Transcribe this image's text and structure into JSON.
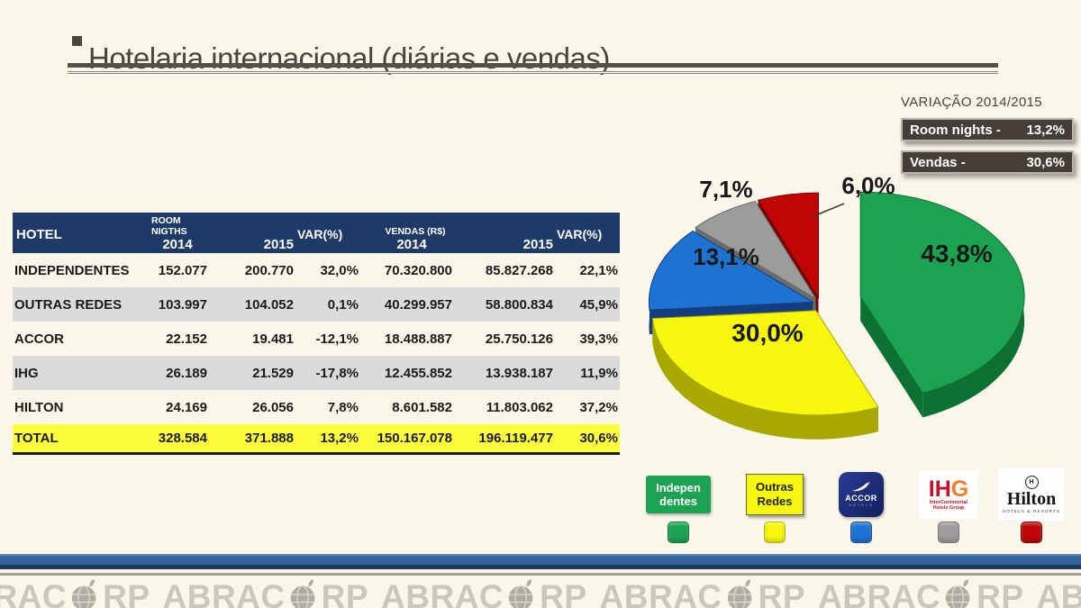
{
  "slide": {
    "title": "Hotelaria internacional (diárias e vendas)",
    "background": "#FAF7EA",
    "title_color": "#4A443C"
  },
  "variation": {
    "title": "VARIAÇÃO 2014/2015",
    "box_color": "#453E37",
    "rows": [
      {
        "label": "Room nights -",
        "value": "13,2%"
      },
      {
        "label": "Vendas -",
        "value": "30,6%"
      }
    ]
  },
  "table": {
    "header": {
      "hotel": "HOTEL",
      "rn_group": "ROOM NIGTHS",
      "rn_2014": "2014",
      "rn_2015": "2015",
      "rn_var": "VAR(%)",
      "v_group": "VENDAS (R$)",
      "v_2014": "2014",
      "v_2015": "2015",
      "v_var": "VAR(%)"
    },
    "header_color": "#1E3A68",
    "stripe_color": "#DBDBDB",
    "total_color": "#FCFC3A",
    "rows": [
      {
        "name": "INDEPENDENTES",
        "rn14": "152.077",
        "rn15": "200.770",
        "rnv": "32,0%",
        "v14": "70.320.800",
        "v15": "85.827.268",
        "vv": "22,1%"
      },
      {
        "name": "OUTRAS REDES",
        "rn14": "103.997",
        "rn15": "104.052",
        "rnv": "0,1%",
        "v14": "40.299.957",
        "v15": "58.800.834",
        "vv": "45,9%"
      },
      {
        "name": "ACCOR",
        "rn14": "22.152",
        "rn15": "19.481",
        "rnv": "-12,1%",
        "v14": "18.488.887",
        "v15": "25.750.126",
        "vv": "39,3%"
      },
      {
        "name": "IHG",
        "rn14": "26.189",
        "rn15": "21.529",
        "rnv": "-17,8%",
        "v14": "12.455.852",
        "v15": "13.938.187",
        "vv": "11,9%"
      },
      {
        "name": "HILTON",
        "rn14": "24.169",
        "rn15": "26.056",
        "rnv": "7,8%",
        "v14": "8.601.582",
        "v15": "11.803.062",
        "vv": "37,2%"
      }
    ],
    "total": {
      "name": "TOTAL",
      "rn14": "328.584",
      "rn15": "371.888",
      "rnv": "13,2%",
      "v14": "150.167.078",
      "v15": "196.119.477",
      "vv": "30,6%"
    }
  },
  "chart_data": {
    "type": "pie",
    "style": "3d-exploded",
    "labels": [
      "Independentes",
      "Outras Redes",
      "Accor",
      "IHG",
      "Hilton"
    ],
    "values": [
      43.8,
      30.0,
      13.1,
      7.1,
      6.0
    ],
    "display_labels": [
      "43,8%",
      "30,0%",
      "13,1%",
      "7,1%",
      "6,0%"
    ],
    "colors": [
      "#1CA351",
      "#F6F60E",
      "#1E72D2",
      "#9C9C9C",
      "#C00505"
    ],
    "side_colors": [
      "#0E7134",
      "#A8A800",
      "#143E80",
      "#6B6B6B",
      "#790303"
    ],
    "exploded_index": 0,
    "start_angle_deg": 0,
    "direction": "clockwise",
    "legend_position": "bottom"
  },
  "legend": {
    "items": [
      {
        "id": "independentes",
        "line1": "Indepen",
        "line2": "dentes"
      },
      {
        "id": "outras-redes",
        "line1": "Outras",
        "line2": "Redes"
      },
      {
        "id": "accor",
        "logo_main": "ACCOR",
        "logo_sub": "HOTELS"
      },
      {
        "id": "ihg",
        "logo_m1": "IH",
        "logo_m2": "G",
        "logo_sub1": "InterContinental",
        "logo_sub2": "Hotels Group"
      },
      {
        "id": "hilton",
        "logo_mark": "H",
        "logo_main": "Hilton",
        "logo_sub": "HOTELS & RESORTS"
      }
    ]
  },
  "watermark": {
    "prefix": "ABRAC",
    "suffix": "RP",
    "repeat": 8
  }
}
